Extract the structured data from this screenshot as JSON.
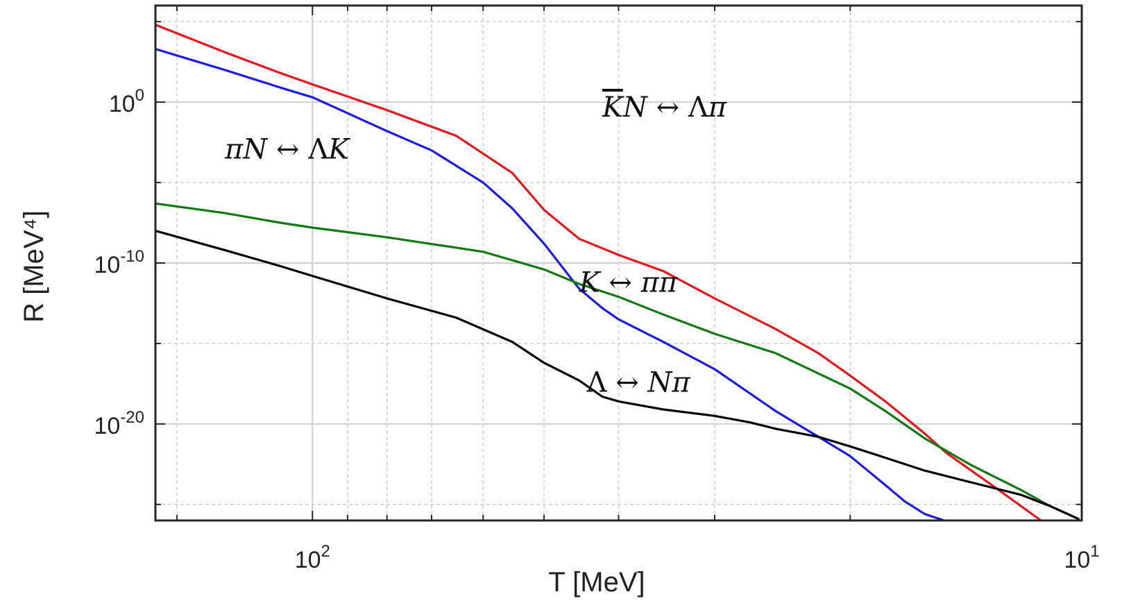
{
  "chart_data": {
    "type": "line",
    "title": "",
    "xlabel": "T [MeV]",
    "ylabel": "R [MeV⁴]",
    "xscale": "log-reversed",
    "yscale": "log",
    "xlim": [
      160,
      10
    ],
    "ylim_exponent": [
      -26,
      6
    ],
    "grid": true,
    "x_ticks": [
      {
        "base": "10",
        "exp": "2",
        "value": 100
      },
      {
        "base": "10",
        "exp": "1",
        "value": 10
      }
    ],
    "y_ticks": [
      {
        "base": "10",
        "exp": "0",
        "value_exp": 0
      },
      {
        "base": "10",
        "exp": "-10",
        "value_exp": -10
      },
      {
        "base": "10",
        "exp": "-20",
        "value_exp": -20
      }
    ],
    "series": [
      {
        "name": "K̄N ↔ Λπ",
        "color": "#e8161b",
        "x": [
          160,
          130,
          110,
          100,
          80,
          65,
          55,
          50,
          45,
          40,
          35,
          30,
          27,
          25,
          22,
          20,
          18,
          16,
          15,
          13,
          11.3
        ],
        "log10_y": [
          4.8,
          3.1,
          1.8,
          1.1,
          -0.5,
          -2.1,
          -4.4,
          -6.7,
          -8.5,
          -9.5,
          -10.5,
          -12.2,
          -13.3,
          -14.1,
          -15.6,
          -17.0,
          -18.6,
          -20.6,
          -21.8,
          -23.9,
          -26.0
        ]
      },
      {
        "name": "πN ↔ ΛK",
        "color": "#1a1aeb",
        "x": [
          160,
          130,
          110,
          100,
          80,
          70,
          60,
          55,
          50,
          45,
          42,
          40,
          35,
          30,
          27,
          25,
          22,
          20,
          18,
          17,
          16,
          15.1
        ],
        "log10_y": [
          3.3,
          2.0,
          0.9,
          0.3,
          -1.8,
          -3.0,
          -5.0,
          -6.6,
          -8.8,
          -11.6,
          -12.8,
          -13.5,
          -14.9,
          -16.6,
          -18.1,
          -19.2,
          -20.8,
          -22.0,
          -23.8,
          -24.8,
          -25.6,
          -26.0
        ]
      },
      {
        "name": "K ↔ ππ",
        "color": "#107a10",
        "x": [
          160,
          130,
          110,
          100,
          80,
          60,
          50,
          45,
          40,
          35,
          30,
          25,
          20,
          18,
          16,
          14,
          12,
          11,
          10.1
        ],
        "log10_y": [
          -6.3,
          -6.9,
          -7.5,
          -7.8,
          -8.4,
          -9.3,
          -10.4,
          -11.3,
          -12.1,
          -13.2,
          -14.4,
          -15.6,
          -17.8,
          -19.2,
          -20.9,
          -22.5,
          -24.1,
          -25.1,
          -25.9
        ]
      },
      {
        "name": "Λ ↔ Nπ",
        "color": "#000000",
        "x": [
          160,
          130,
          110,
          100,
          80,
          65,
          55,
          50,
          45,
          42,
          40,
          35,
          30,
          27,
          25,
          22,
          20,
          18,
          16,
          14,
          12,
          11,
          10.1
        ],
        "log10_y": [
          -8.0,
          -9.2,
          -10.2,
          -10.8,
          -12.2,
          -13.4,
          -14.9,
          -16.2,
          -17.3,
          -18.3,
          -18.6,
          -19.1,
          -19.5,
          -19.9,
          -20.3,
          -20.8,
          -21.4,
          -22.1,
          -22.9,
          -23.6,
          -24.4,
          -25.1,
          -25.9
        ]
      }
    ],
    "annotations": [
      {
        "id": "kbar",
        "parts": [
          {
            "t": "K",
            "over": true
          },
          {
            "t": "N "
          },
          {
            "t": "↔",
            "up": true
          },
          {
            "t": " Λ",
            "up": true
          },
          {
            "t": "π"
          }
        ],
        "anchor_x": 42,
        "anchor_log10_y": -0.9
      },
      {
        "id": "pin",
        "parts": [
          {
            "t": "π"
          },
          {
            "t": "N "
          },
          {
            "t": "↔",
            "up": true
          },
          {
            "t": " Λ",
            "up": true
          },
          {
            "t": "K"
          }
        ],
        "anchor_x": 130,
        "anchor_log10_y": -3.5
      },
      {
        "id": "kpp",
        "parts": [
          {
            "t": "K "
          },
          {
            "t": "↔",
            "up": true
          },
          {
            "t": " ππ"
          }
        ],
        "anchor_x": 45,
        "anchor_log10_y": -11.8
      },
      {
        "id": "lnp",
        "parts": [
          {
            "t": "Λ",
            "up": true
          },
          {
            "t": " "
          },
          {
            "t": "↔",
            "up": true
          },
          {
            "t": " N"
          },
          {
            "t": "π"
          }
        ],
        "anchor_x": 44,
        "anchor_log10_y": -18.0
      }
    ]
  }
}
